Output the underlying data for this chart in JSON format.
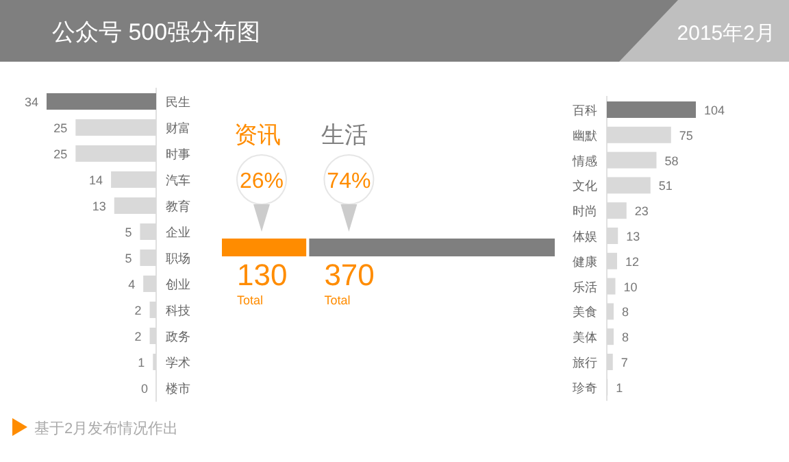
{
  "chart_data": [
    {
      "type": "bar",
      "orientation": "horizontal",
      "title": "公众号  500强分布图",
      "annotations": [
        "基于2月发布情况作出"
      ],
      "data_labels": true,
      "categories": [
        "民生",
        "财富",
        "时事",
        "汽车",
        "教育",
        "企业",
        "职场",
        "创业",
        "科技",
        "政务",
        "学术",
        "楼市"
      ],
      "values": [
        34,
        25,
        25,
        14,
        13,
        5,
        5,
        4,
        2,
        2,
        1,
        0
      ],
      "colors": [
        "#7f7f7f",
        "#d9d9d9",
        "#d9d9d9",
        "#d9d9d9",
        "#d9d9d9",
        "#d9d9d9",
        "#d9d9d9",
        "#d9d9d9",
        "#d9d9d9",
        "#d9d9d9",
        "#d9d9d9",
        "#d9d9d9"
      ]
    },
    {
      "type": "bar",
      "orientation": "horizontal",
      "stacked": true,
      "categories": [
        null
      ],
      "annotations": [
        "26%",
        "74%",
        "Total",
        "Total"
      ],
      "series": [
        {
          "name": "资讯",
          "color": "#ff8c00",
          "values": [
            130
          ],
          "value_labels": [
            "130"
          ]
        },
        {
          "name": "生活",
          "color": "#7f7f7f",
          "values": [
            370
          ],
          "value_labels": [
            "370"
          ]
        }
      ]
    },
    {
      "type": "bar",
      "orientation": "horizontal",
      "data_labels": true,
      "subtitle": "2015年2月",
      "categories": [
        "百科",
        "幽默",
        "情感",
        "文化",
        "时尚",
        "体娱",
        "健康",
        "乐活",
        "美食",
        "美体",
        "旅行",
        "珍奇"
      ],
      "values": [
        104,
        75,
        58,
        51,
        23,
        13,
        12,
        10,
        8,
        8,
        7,
        1
      ],
      "colors": [
        "#7f7f7f",
        "#d9d9d9",
        "#d9d9d9",
        "#d9d9d9",
        "#d9d9d9",
        "#d9d9d9",
        "#d9d9d9",
        "#d9d9d9",
        "#d9d9d9",
        "#d9d9d9",
        "#d9d9d9",
        "#d9d9d9"
      ]
    }
  ]
}
